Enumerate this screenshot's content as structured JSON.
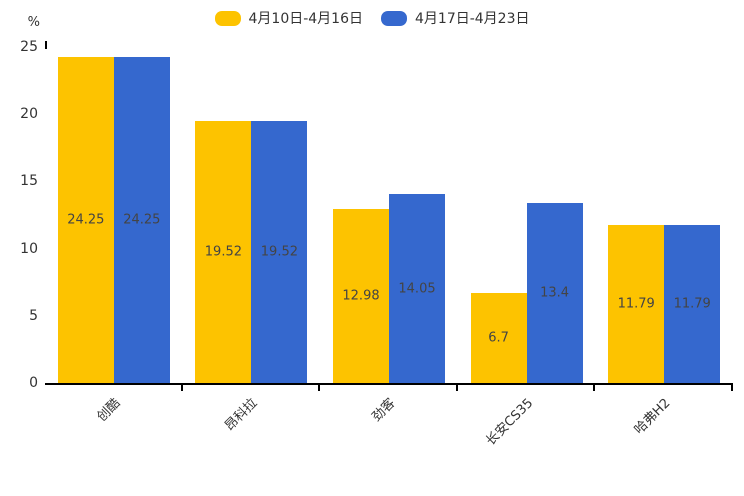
{
  "chart_data": {
    "type": "bar",
    "title": "",
    "ylabel": "%",
    "xlabel": "",
    "categories": [
      "创酷",
      "昂科拉",
      "劲客",
      "长安CS35",
      "哈弗H2"
    ],
    "series": [
      {
        "name": "4月10日-4月16日",
        "color": "#FDC300",
        "values": [
          24.25,
          19.52,
          12.98,
          6.7,
          11.79
        ]
      },
      {
        "name": "4月17日-4月23日",
        "color": "#3568CE",
        "values": [
          24.25,
          19.52,
          14.05,
          13.4,
          11.79
        ]
      }
    ],
    "yticks": [
      0,
      5,
      10,
      15,
      20,
      25
    ],
    "ylim": [
      0,
      25
    ],
    "grid": false,
    "legend_position": "top-center",
    "bar_label_color": "#444444",
    "axis_color": "#000000",
    "label_color": "#333333"
  }
}
